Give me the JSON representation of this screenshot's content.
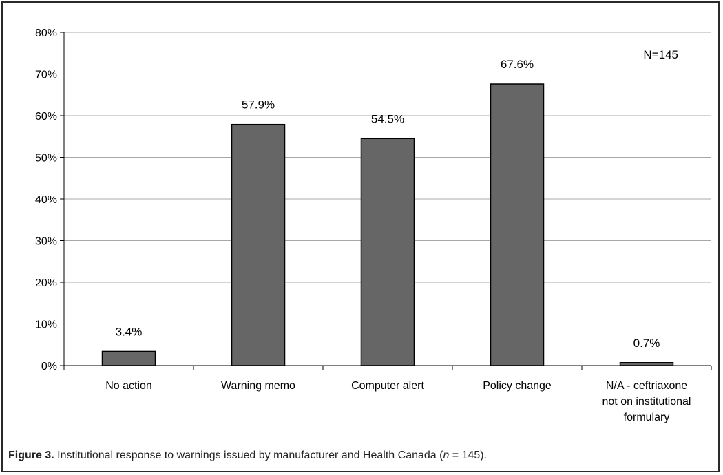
{
  "chart_data": {
    "type": "bar",
    "categories": [
      [
        "No action"
      ],
      [
        "Warning memo"
      ],
      [
        "Computer alert"
      ],
      [
        "Policy change"
      ],
      [
        "N/A - ceftriaxone",
        "not on institutional",
        "formulary"
      ]
    ],
    "values": [
      3.4,
      57.9,
      54.5,
      67.6,
      0.7
    ],
    "data_labels": [
      "3.4%",
      "57.9%",
      "54.5%",
      "67.6%",
      "0.7%"
    ],
    "y_ticks": [
      "0%",
      "10%",
      "20%",
      "30%",
      "40%",
      "50%",
      "60%",
      "70%",
      "80%"
    ],
    "ylim": [
      0,
      80
    ],
    "grid": true,
    "bar_color": "#666666",
    "annotation": "N=145"
  },
  "caption": {
    "figure_label": "Figure 3.",
    "text_before": " Institutional response to warnings issued by manufacturer and Health Canada (",
    "n_symbol": "n",
    "text_after": " = 145)."
  }
}
